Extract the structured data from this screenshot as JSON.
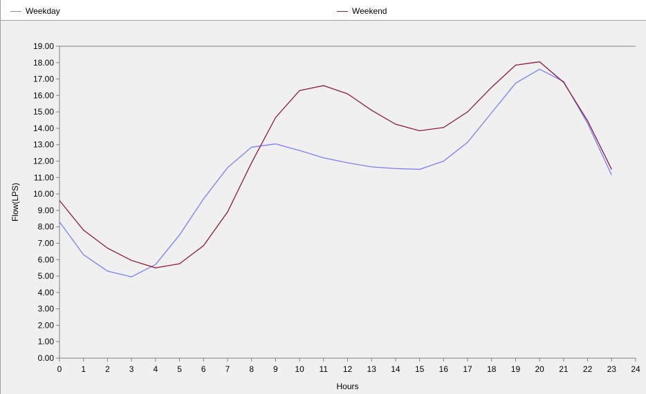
{
  "legend": {
    "items": [
      {
        "label": "Weekday",
        "color": "#7b7bff"
      },
      {
        "label": "Weekend",
        "color": "#8b1a3a"
      }
    ]
  },
  "chart_data": {
    "type": "line",
    "xlabel": "Hours",
    "ylabel": "Flow(LPS)",
    "xlim": [
      0,
      24
    ],
    "ylim": [
      0,
      19
    ],
    "x_ticks": [
      "0",
      "1",
      "2",
      "3",
      "4",
      "5",
      "6",
      "7",
      "8",
      "9",
      "10",
      "11",
      "12",
      "13",
      "14",
      "15",
      "16",
      "17",
      "18",
      "19",
      "20",
      "21",
      "22",
      "23",
      "24"
    ],
    "y_ticks": [
      "0.00",
      "1.00",
      "2.00",
      "3.00",
      "4.00",
      "5.00",
      "6.00",
      "7.00",
      "8.00",
      "9.00",
      "10.00",
      "11.00",
      "12.00",
      "13.00",
      "14.00",
      "15.00",
      "16.00",
      "17.00",
      "18.00",
      "19.00"
    ],
    "grid": false,
    "legend_position": "top",
    "x": [
      0,
      1,
      2,
      3,
      4,
      5,
      6,
      7,
      8,
      9,
      10,
      11,
      12,
      13,
      14,
      15,
      16,
      17,
      18,
      19,
      20,
      21,
      22,
      23
    ],
    "series": [
      {
        "name": "Weekday",
        "color": "#7b7bff",
        "values": [
          8.3,
          6.3,
          5.3,
          4.95,
          5.7,
          7.5,
          9.7,
          11.6,
          12.85,
          13.05,
          12.65,
          12.2,
          11.9,
          11.65,
          11.55,
          11.5,
          12.0,
          13.15,
          14.95,
          16.75,
          17.6,
          16.85,
          14.3,
          11.15
        ]
      },
      {
        "name": "Weekend",
        "color": "#8b1a3a",
        "values": [
          9.6,
          7.8,
          6.7,
          5.95,
          5.5,
          5.75,
          6.85,
          8.9,
          11.9,
          14.65,
          16.3,
          16.6,
          16.1,
          15.1,
          14.25,
          13.85,
          14.05,
          15.0,
          16.5,
          17.85,
          18.05,
          16.8,
          14.45,
          11.5
        ]
      }
    ]
  }
}
